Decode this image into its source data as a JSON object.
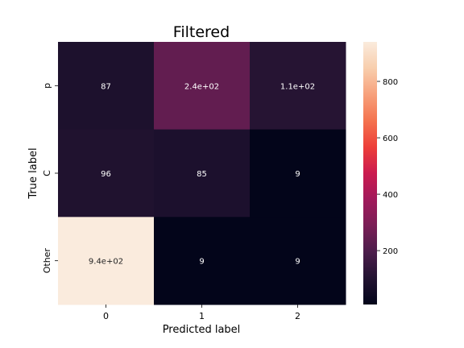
{
  "chart_data": {
    "type": "heatmap",
    "title": "Filtered",
    "xlabel": "Predicted label",
    "ylabel": "True label",
    "x_categories": [
      "0",
      "1",
      "2"
    ],
    "y_categories": [
      "p",
      "C",
      "Other"
    ],
    "values": [
      [
        87,
        240,
        110
      ],
      [
        96,
        85,
        9
      ],
      [
        940,
        9,
        9
      ]
    ],
    "annotations": [
      [
        "87",
        "2.4e+02",
        "1.1e+02"
      ],
      [
        "96",
        "85",
        "9"
      ],
      [
        "9.4e+02",
        "9",
        "9"
      ]
    ],
    "colorbar": {
      "range": [
        9,
        940
      ],
      "ticks": [
        200,
        400,
        600,
        800
      ],
      "tick_labels": [
        "200",
        "400",
        "600",
        "800"
      ],
      "colormap": "rocket"
    },
    "colors": {
      "colormap_stops": [
        "#03051a",
        "#221331",
        "#4c1d4b",
        "#7a1e56",
        "#a11a5b",
        "#cb1b4f",
        "#ed3f39",
        "#f4734f",
        "#f7a17c",
        "#f8cead",
        "#faebdd"
      ]
    }
  }
}
